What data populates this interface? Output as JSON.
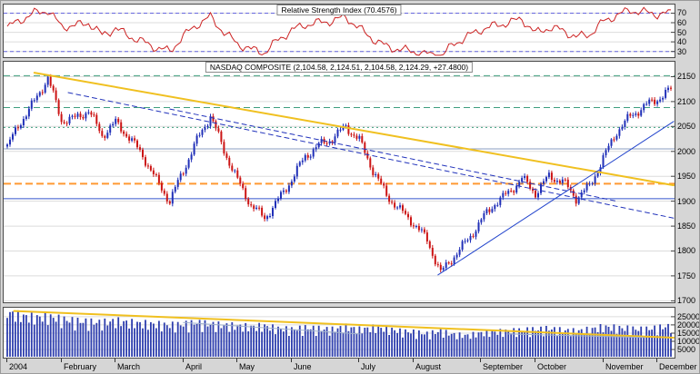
{
  "window": {
    "bg_color": "#d6d6d6",
    "pane_bg": "#ffffff",
    "grid_color": "#dcdcdc"
  },
  "chart_data": [
    {
      "id": "rsi",
      "type": "line",
      "title": "Relative Strength Index (70.4576)",
      "last_value": 70.4576,
      "line_color": "#cc2222",
      "ylim": [
        24,
        79
      ],
      "yticks": [
        70,
        60,
        50,
        40,
        30
      ],
      "hlines": [
        {
          "y": 70,
          "color": "#6666dd",
          "dash": "4,3"
        },
        {
          "y": 30,
          "color": "#6666dd",
          "dash": "4,3"
        }
      ],
      "weekly_values": [
        55,
        63,
        70,
        73,
        56,
        57,
        60,
        47,
        54,
        46,
        40,
        34,
        30,
        46,
        58,
        66,
        50,
        38,
        32,
        29,
        42,
        52,
        58,
        60,
        62,
        66,
        54,
        43,
        35,
        32,
        30,
        27,
        25,
        38,
        46,
        53,
        57,
        60,
        64,
        49,
        55,
        52,
        45,
        48,
        61,
        68,
        73,
        71,
        69,
        70
      ]
    },
    {
      "id": "price",
      "type": "candlestick",
      "title": "NASDAQ COMPOSITE (2,104.58, 2,124.51, 2,104.58, 2,124.29, +27.4800)",
      "last_values": {
        "open": "2,104.58",
        "high": "2,124.51",
        "low": "2,104.58",
        "close": "2,124.29",
        "change": "+27.4800"
      },
      "up_color": "#2130b8",
      "down_color": "#cc1414",
      "ylim": [
        1697,
        2180
      ],
      "yticks": [
        2150,
        2100,
        2050,
        2000,
        1950,
        1900,
        1850,
        1800,
        1750,
        1700
      ],
      "hlines": [
        {
          "y": 2152,
          "color": "#3f9e7f",
          "dash": "7,4"
        },
        {
          "y": 2088,
          "color": "#3f9e7f",
          "dash": "7,4"
        },
        {
          "y": 2048,
          "color": "#3f9e7f",
          "dash": "2,3"
        },
        {
          "y": 2005,
          "color": "#8a9cc0",
          "dash": ""
        },
        {
          "y": 1935,
          "color": "#ff9933",
          "dash": "8,4",
          "width": 2
        },
        {
          "y": 1905,
          "color": "#3355cc",
          "dash": ""
        }
      ],
      "trendlines": [
        {
          "x1": 2,
          "y1": 2158,
          "x2": 50,
          "y2": 1932,
          "color": "#f0c020",
          "width": 2,
          "dash": ""
        },
        {
          "x1": 4.5,
          "y1": 2118,
          "x2": 50,
          "y2": 1866,
          "color": "#2233bb",
          "width": 1,
          "dash": "5,4"
        },
        {
          "x1": 12,
          "y1": 2085,
          "x2": 45,
          "y2": 1900,
          "color": "#2233bb",
          "width": 1,
          "dash": "5,4"
        },
        {
          "x1": 31.8,
          "y1": 1752,
          "x2": 50,
          "y2": 2060,
          "color": "#2244cc",
          "width": 1,
          "dash": ""
        }
      ],
      "weekly_close": [
        2010,
        2060,
        2100,
        2148,
        2062,
        2066,
        2082,
        2032,
        2058,
        2028,
        1992,
        1942,
        1900,
        1962,
        2022,
        2072,
        2002,
        1942,
        1892,
        1866,
        1902,
        1944,
        1990,
        2012,
        2026,
        2050,
        2022,
        1962,
        1912,
        1882,
        1856,
        1822,
        1756,
        1790,
        1822,
        1862,
        1896,
        1916,
        1946,
        1916,
        1950,
        1940,
        1906,
        1930,
        1986,
        2040,
        2070,
        2090,
        2105,
        2124
      ]
    },
    {
      "id": "volume",
      "type": "bar",
      "title": "",
      "bar_color": "#2f3fae",
      "ylim": [
        0,
        30500
      ],
      "yticks": [
        25000,
        20000,
        15000,
        10000,
        5000
      ],
      "trendlines": [
        {
          "x1": 0.5,
          "y1": 28500,
          "x2": 50,
          "y2": 12200,
          "color": "#f0c020",
          "width": 2,
          "dash": ""
        },
        {
          "x1": 13,
          "y1": 21500,
          "x2": 26,
          "y2": 14500,
          "color": "#9fb0cc",
          "width": 1,
          "dash": ""
        },
        {
          "x1": 37,
          "y1": 14500,
          "x2": 47,
          "y2": 12300,
          "color": "#9fb0cc",
          "width": 1,
          "dash": ""
        }
      ],
      "weekly_values": [
        26500,
        24500,
        23500,
        24000,
        22500,
        21500,
        21000,
        20500,
        21500,
        20500,
        20000,
        19500,
        19000,
        19500,
        20500,
        19500,
        19000,
        18500,
        18000,
        18500,
        17000,
        16500,
        17500,
        17000,
        16500,
        18000,
        16500,
        17500,
        17000,
        15500,
        15000,
        14000,
        15500,
        13500,
        13000,
        14500,
        15000,
        15500,
        16000,
        16500,
        17000,
        16000,
        15500,
        16500,
        18000,
        17500,
        17000,
        16500,
        17500,
        18500
      ]
    }
  ],
  "x_axis": {
    "labels": [
      {
        "text": "2004",
        "week": 0
      },
      {
        "text": "February",
        "week": 4
      },
      {
        "text": "March",
        "week": 8
      },
      {
        "text": "April",
        "week": 13
      },
      {
        "text": "May",
        "week": 17
      },
      {
        "text": "June",
        "week": 21
      },
      {
        "text": "July",
        "week": 26
      },
      {
        "text": "August",
        "week": 30
      },
      {
        "text": "September",
        "week": 35
      },
      {
        "text": "October",
        "week": 39
      },
      {
        "text": "November",
        "week": 44
      },
      {
        "text": "December",
        "week": 48
      }
    ]
  }
}
